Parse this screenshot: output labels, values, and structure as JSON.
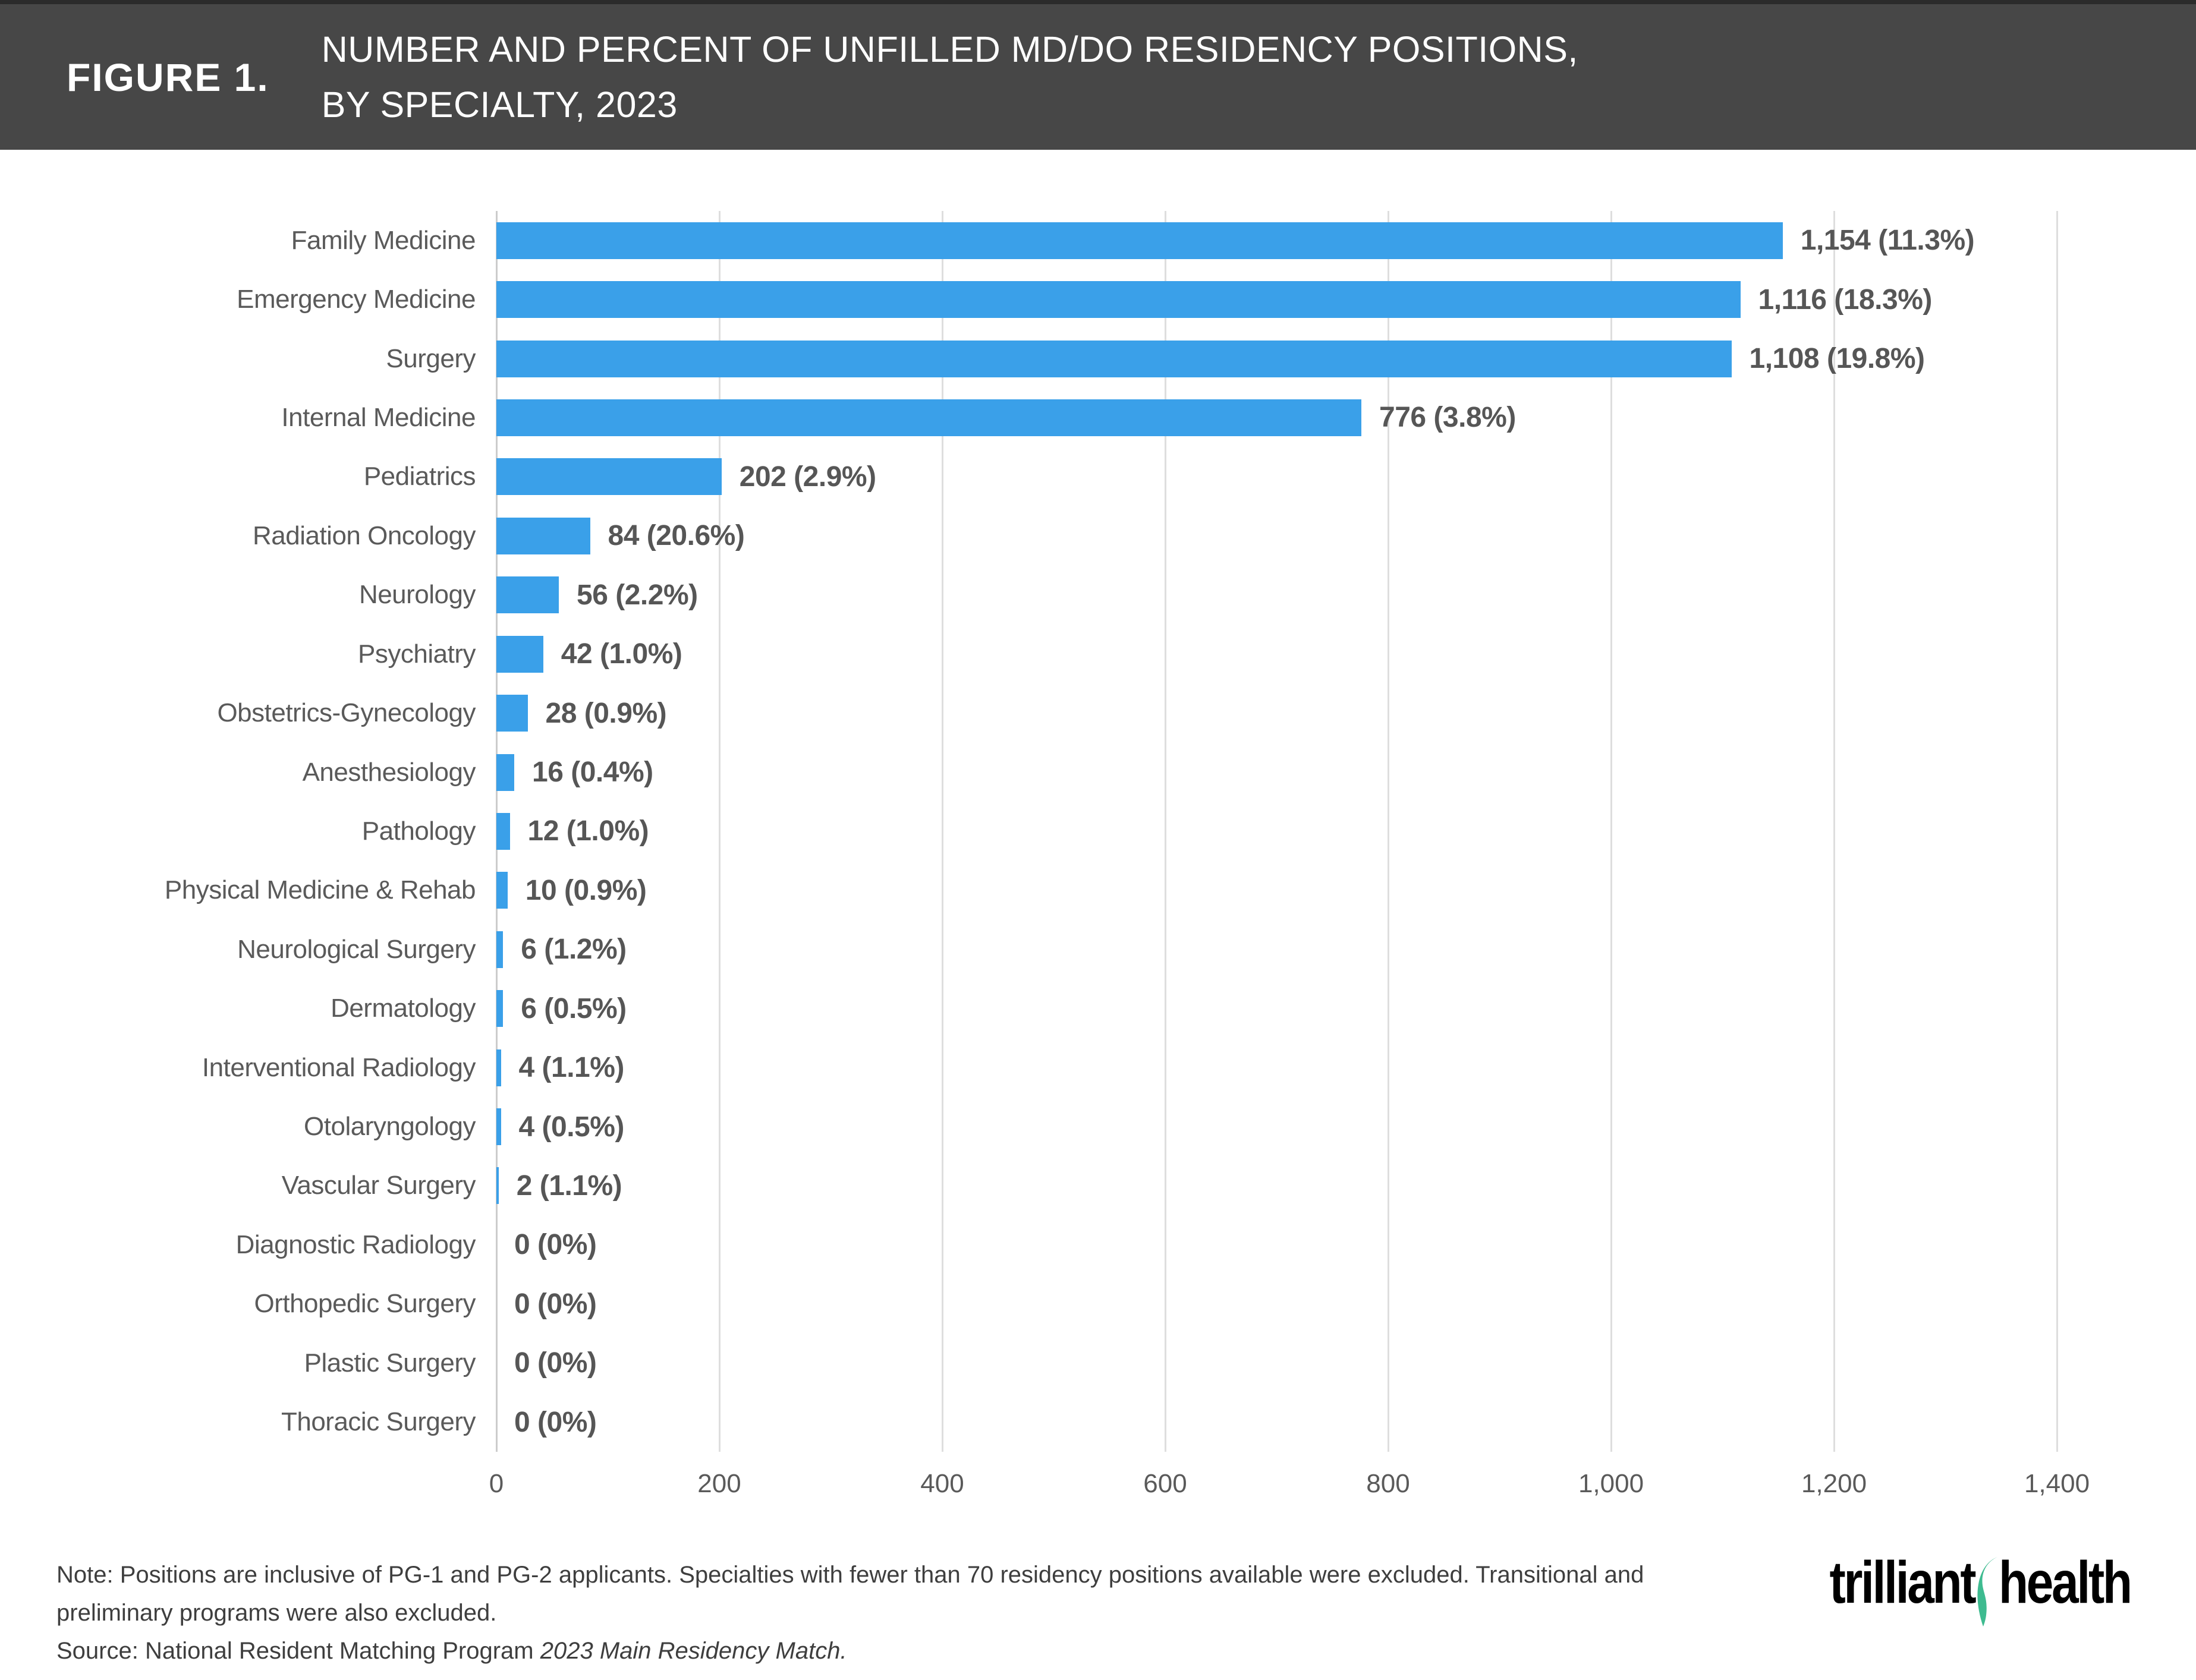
{
  "figure": {
    "label": "FIGURE 1.",
    "title_line1": "NUMBER AND PERCENT OF UNFILLED MD/DO RESIDENCY POSITIONS,",
    "title_line2": "BY SPECIALTY, 2023"
  },
  "chart_data": {
    "type": "bar",
    "orientation": "horizontal",
    "title": "Number and Percent of Unfilled MD/DO Residency Positions, by Specialty, 2023",
    "categories": [
      "Family Medicine",
      "Emergency Medicine",
      "Surgery",
      "Internal Medicine",
      "Pediatrics",
      "Radiation Oncology",
      "Neurology",
      "Psychiatry",
      "Obstetrics-Gynecology",
      "Anesthesiology",
      "Pathology",
      "Physical Medicine & Rehab",
      "Neurological Surgery",
      "Dermatology",
      "Interventional Radiology",
      "Otolaryngology",
      "Vascular Surgery",
      "Diagnostic Radiology",
      "Orthopedic Surgery",
      "Plastic Surgery",
      "Thoracic Surgery"
    ],
    "values": [
      1154,
      1116,
      1108,
      776,
      202,
      84,
      56,
      42,
      28,
      16,
      12,
      10,
      6,
      6,
      4,
      4,
      2,
      0,
      0,
      0,
      0
    ],
    "percents": [
      11.3,
      18.3,
      19.8,
      3.8,
      2.9,
      20.6,
      2.2,
      1.0,
      0.9,
      0.4,
      1.0,
      0.9,
      1.2,
      0.5,
      1.1,
      0.5,
      1.1,
      0,
      0,
      0,
      0
    ],
    "labels": [
      "1,154 (11.3%)",
      "1,116 (18.3%)",
      "1,108 (19.8%)",
      "776 (3.8%)",
      "202 (2.9%)",
      "84 (20.6%)",
      "56 (2.2%)",
      "42 (1.0%)",
      "28 (0.9%)",
      "16 (0.4%)",
      "12 (1.0%)",
      "10 (0.9%)",
      "6 (1.2%)",
      "6 (0.5%)",
      "4 (1.1%)",
      "4 (0.5%)",
      "2 (1.1%)",
      "0 (0%)",
      "0 (0%)",
      "0 (0%)",
      "0 (0%)"
    ],
    "xlim": [
      0,
      1400
    ],
    "x_ticks": [
      0,
      200,
      400,
      600,
      800,
      1000,
      1200,
      1400
    ],
    "x_tick_labels": [
      "0",
      "200",
      "400",
      "600",
      "800",
      "1,000",
      "1,200",
      "1,400"
    ],
    "grid": true,
    "legend": "none"
  },
  "note": {
    "line1": "Note: Positions are inclusive of PG-1 and PG-2 applicants. Specialties with fewer than 70 residency positions available were excluded. Transitional and",
    "line2": "preliminary programs were also excluded.",
    "source_prefix": "Source: National Resident Matching Program ",
    "source_italic": "2023 Main Residency Match."
  },
  "logo": {
    "word1": "trilliant",
    "word2": "health"
  },
  "colors": {
    "bar": "#3AA0E9",
    "header_bg": "#474747",
    "grid": "#dedede",
    "axis": "#cccccc",
    "category_label": "#5a5a5a",
    "value_label": "#565656",
    "accent_green": "#3EBB90"
  }
}
